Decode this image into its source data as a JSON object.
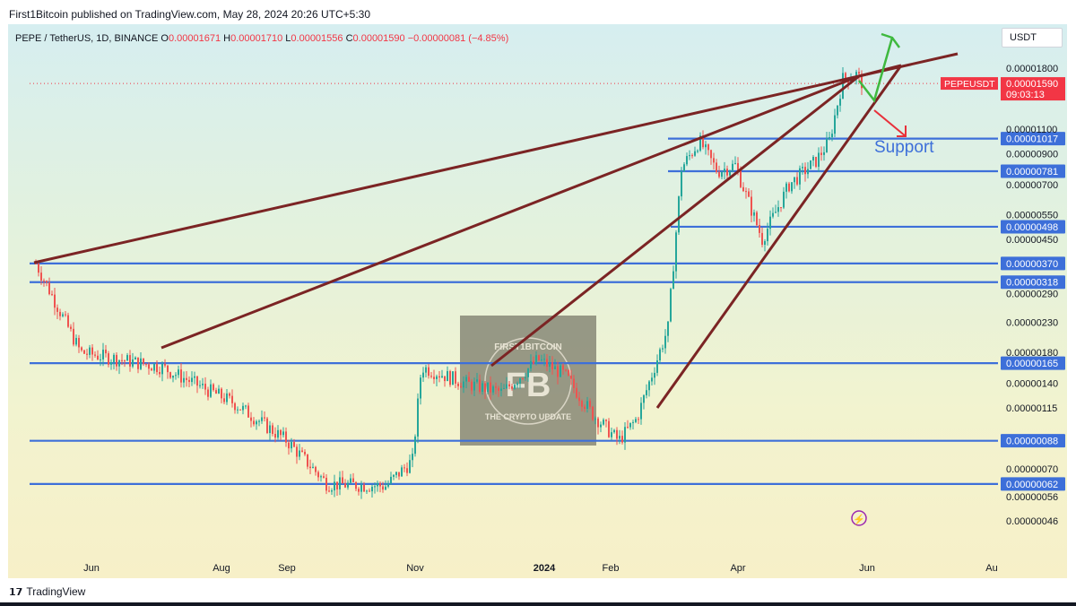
{
  "header": {
    "published": "First1Bitcoin published on TradingView.com, May 28, 2024 20:26 UTC+5:30"
  },
  "legend": {
    "symbol": "PEPE / TetherUS, 1D, BINANCE",
    "o_label": "O",
    "o": "0.00001671",
    "h_label": "H",
    "h": "0.00001710",
    "l_label": "L",
    "l": "0.00001556",
    "c_label": "C",
    "c": "0.00001590",
    "change": "−0.00000081 (−4.85%)"
  },
  "currency_button": "USDT",
  "footer": {
    "brand": "TradingView"
  },
  "colors": {
    "candle_up": "#26a69a",
    "candle_down": "#ef5350",
    "level_line": "#3d6fd9",
    "trend_line": "#7b2424",
    "arrow_up": "#3fb93f",
    "arrow_down": "#e8303a",
    "price_tag": "#f23645"
  },
  "chart_data": {
    "type": "candlestick",
    "ylabel": "USDT",
    "log_scale": true,
    "x_ticks": [
      "Jun",
      "Aug",
      "Sep",
      "Nov",
      "2024",
      "Feb",
      "Apr",
      "Jun",
      "Au"
    ],
    "y_ticks": [
      "0.00001800",
      "0.00001100",
      "0.00000900",
      "0.00000700",
      "0.00000550",
      "0.00000450",
      "0.00000290",
      "0.00000230",
      "0.00000180",
      "0.00000140",
      "0.00000115",
      "0.00000070",
      "0.00000056",
      "0.00000046"
    ],
    "horizontal_levels": [
      "0.00001017",
      "0.00000781",
      "0.00000498",
      "0.00000370",
      "0.00000318",
      "0.00000165",
      "0.00000088",
      "0.00000062"
    ],
    "current_price": {
      "symbol": "PEPEUSDT",
      "price": "0.00001590",
      "countdown": "09:03:13"
    },
    "annotations": [
      "Support"
    ],
    "series_anchor_prices": [
      3.7e-06,
      1.8e-06,
      1.6e-06,
      1.2e-06,
      8.8e-07,
      6.2e-07,
      6.1e-07,
      7.5e-07,
      1.6e-06,
      1.4e-06,
      1.3e-06,
      1.7e-06,
      1.5e-06,
      1.1e-06,
      8.8e-07,
      1.05e-06,
      2.2e-06,
      8e-06,
      1e-05,
      7.8e-06,
      8.2e-06,
      4.5e-06,
      7e-06,
      8.5e-06,
      1e-05,
      1.65e-05,
      1.71e-05,
      1.59e-05
    ],
    "watermark_text": [
      "FIRST1BITCOIN",
      "THE CRYPTO UPDATE",
      "FB"
    ]
  }
}
